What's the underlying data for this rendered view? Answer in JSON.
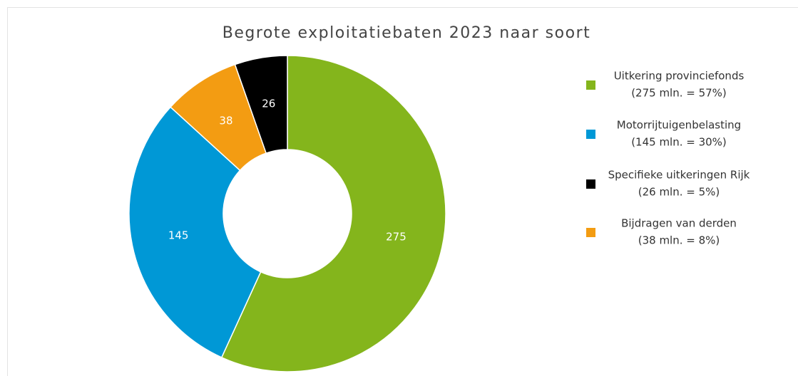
{
  "chart_data": {
    "type": "donut",
    "title": "Begrote exploitatiebaten 2023 naar soort",
    "values": [
      275,
      145,
      38,
      26
    ],
    "colors": [
      "#84b51c",
      "#0098d6",
      "#f39c12",
      "#000000"
    ],
    "legend": [
      {
        "name": "Uitkering provinciefonds",
        "label": "(275 mln. = 57%)",
        "color": "#84b51c"
      },
      {
        "name": "Motorrijtuigenbelasting",
        "label": "(145 mln. = 30%)",
        "color": "#0098d6"
      },
      {
        "name": "Specifieke uitkeringen Rijk",
        "label": "(26 mln. = 5%)",
        "color": "#000000"
      },
      {
        "name": "Bijdragen van derden",
        "label": "(38 mln. = 8%)",
        "color": "#f39c12"
      }
    ]
  }
}
